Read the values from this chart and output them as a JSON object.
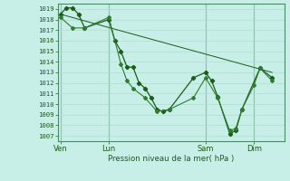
{
  "bg_color": "#c8eee8",
  "grid_color": "#b0ddd0",
  "line_color_dark": "#1a5c1a",
  "line_color_mid": "#2e7d2e",
  "xlabel_text": "Pression niveau de la mer( hPa )",
  "xtick_labels": [
    "Ven",
    "Lun",
    "Sam",
    "Dim"
  ],
  "xtick_positions": [
    0,
    4,
    12,
    16
  ],
  "xlim": [
    -0.2,
    18.5
  ],
  "ylim": [
    1006.5,
    1019.5
  ],
  "yticks": [
    1007,
    1008,
    1009,
    1010,
    1011,
    1012,
    1013,
    1014,
    1015,
    1016,
    1017,
    1018,
    1019
  ],
  "series_main": {
    "x": [
      0,
      0.5,
      1.0,
      1.5,
      2.0,
      4.0,
      4.5,
      5.0,
      5.5,
      6.0,
      6.5,
      7.0,
      7.5,
      8.0,
      8.5,
      9.0,
      11.0,
      12.0,
      12.5,
      13.0,
      14.0,
      14.5,
      15.0,
      16.5,
      17.5
    ],
    "y": [
      1018.5,
      1019.1,
      1019.1,
      1018.5,
      1017.2,
      1018.0,
      1016.0,
      1015.0,
      1013.5,
      1013.5,
      1012.0,
      1011.5,
      1010.6,
      1009.5,
      1009.3,
      1009.5,
      1012.5,
      1013.0,
      1012.2,
      1010.7,
      1007.2,
      1007.5,
      1009.5,
      1013.4,
      1012.5
    ]
  },
  "series_secondary": {
    "x": [
      0,
      1.0,
      2.0,
      4.0,
      5.0,
      5.5,
      6.0,
      7.0,
      8.0,
      9.0,
      11.0,
      12.0,
      13.0,
      14.0,
      14.5,
      15.0,
      16.0,
      16.5,
      17.5
    ],
    "y": [
      1018.2,
      1017.2,
      1017.2,
      1018.2,
      1013.8,
      1012.2,
      1011.5,
      1010.6,
      1009.3,
      1009.5,
      1010.6,
      1012.5,
      1010.6,
      1007.5,
      1007.7,
      1009.5,
      1011.8,
      1013.4,
      1012.2
    ]
  },
  "series_straight": {
    "x": [
      0,
      17.5
    ],
    "y": [
      1018.5,
      1013.0
    ]
  }
}
